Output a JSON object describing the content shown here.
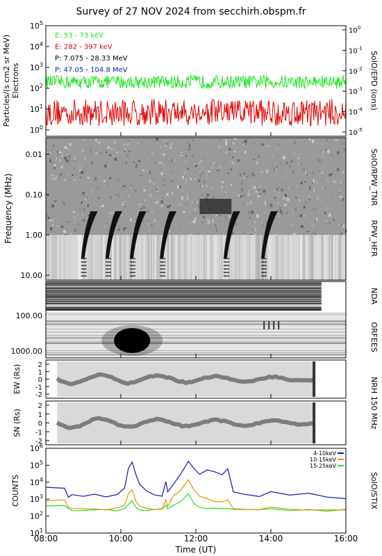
{
  "title": "Survey of 27 NOV 2024 from secchirh.obspm.fr",
  "time_axis": {
    "label": "Time (UT)",
    "ticks": [
      "08:00",
      "10:00",
      "12:00",
      "14:00",
      "16:00"
    ],
    "range_hours": [
      8,
      16
    ]
  },
  "colors": {
    "green": "#19e619",
    "red": "#e00000",
    "blue": "#1414b4",
    "orange": "#f08c00",
    "black": "#000000"
  },
  "chart_data": [
    {
      "type": "line",
      "panel": "SoIO/EPD (ions)",
      "ylabel": "Particles/(s cm2 sr MeV) Electrons",
      "ylim": [
        0.5,
        100000
      ],
      "log_scale": true,
      "y_ticks": [
        1,
        10,
        100,
        1000,
        10000,
        100000
      ],
      "right_axis_ticks": [
        1e-05,
        0.0001,
        0.001,
        0.01,
        0.1,
        1
      ],
      "right_label": "SoIO/EPD (ions)",
      "legend": [
        {
          "name": "E: 53 - 73 keV",
          "color": "#19e619"
        },
        {
          "name": "E: 282 - 397 keV",
          "color": "#e00000"
        },
        {
          "name": "P: 7.075 - 28.33 MeV",
          "color": "#000000"
        },
        {
          "name": "P: 47.05 - 104.8 MeV",
          "color": "#1414b4"
        }
      ],
      "series": [
        {
          "name": "E: 53 - 73 keV",
          "typical": 200,
          "range": [
            60,
            600
          ]
        },
        {
          "name": "E: 282 - 397 keV",
          "typical": 8,
          "range": [
            1,
            30
          ]
        }
      ]
    },
    {
      "type": "heatmap",
      "panel": "SoIO/RPW_TNR / RPW_HFR",
      "ylabel": "Frequency (MHz)",
      "y_ticks": [
        "0.01",
        "0.10",
        "1.00",
        "10.00"
      ],
      "right_labels": [
        "SoIO/RPW_TNR",
        "RPW_HFR"
      ],
      "type_iii_bursts_hours": [
        9.05,
        9.7,
        10.35,
        11.15,
        12.85,
        13.85
      ]
    },
    {
      "type": "heatmap",
      "panel": "NDA",
      "right_label": "NDA",
      "data_end_hours": 15.35
    },
    {
      "type": "heatmap",
      "panel": "ORFEES",
      "y_ticks": [
        "100.00",
        "1000.00"
      ],
      "right_label": "ORFEES",
      "burst_hours": [
        10.3
      ]
    },
    {
      "type": "heatmap",
      "panel": "NRH 150 MHz EW",
      "ylabel": "EW (Rs)",
      "y_ticks": [
        "2",
        "1",
        "0",
        "-1",
        "-2"
      ],
      "right_label": "NRH 150 MHz",
      "data_hours": [
        8.3,
        15.15
      ]
    },
    {
      "type": "heatmap",
      "panel": "NRH 150 MHz SN",
      "ylabel": "SN (Rs)",
      "y_ticks": [
        "2",
        "1",
        "0",
        "-1",
        "-2"
      ],
      "data_hours": [
        8.3,
        15.15
      ]
    },
    {
      "type": "line",
      "panel": "SoIO/STIX",
      "ylabel": "COUNTS",
      "ylim": [
        10,
        1000000
      ],
      "log_scale": true,
      "y_ticks": [
        10,
        100,
        1000,
        10000,
        100000,
        1000000
      ],
      "right_label": "SoIO/STIX",
      "x_hours": [
        8.5,
        8.6,
        8.7,
        9.0,
        9.3,
        9.6,
        9.9,
        10.1,
        10.2,
        10.3,
        10.4,
        10.5,
        10.7,
        10.9,
        11.1,
        11.2,
        11.25,
        11.4,
        11.6,
        11.8,
        11.95,
        12.1,
        12.3,
        12.5,
        12.7,
        12.85,
        13.0,
        13.3,
        13.7,
        14.0,
        14.5,
        15.0,
        15.5,
        16.0
      ],
      "series": [
        {
          "name": "4-10keV",
          "color": "#1414b4",
          "values": [
            5000,
            1500,
            2000,
            1500,
            1800,
            1500,
            2000,
            4000,
            60000,
            150000,
            30000,
            8000,
            3000,
            2000,
            1500,
            10000,
            3000,
            8000,
            30000,
            150000,
            60000,
            30000,
            50000,
            40000,
            30000,
            60000,
            3000,
            2000,
            1500,
            3000,
            1500,
            2000,
            1200,
            1200
          ]
        },
        {
          "name": "10-15keV",
          "color": "#f08c00",
          "values": [
            800,
            300,
            250,
            250,
            250,
            250,
            280,
            400,
            2000,
            4000,
            800,
            350,
            280,
            250,
            260,
            1000,
            400,
            1500,
            3000,
            15000,
            4000,
            1500,
            1000,
            700,
            600,
            800,
            250,
            250,
            250,
            300,
            250,
            260,
            240,
            250
          ]
        },
        {
          "name": "15-25keV",
          "color": "#19e619",
          "values": [
            400,
            250,
            230,
            220,
            220,
            220,
            230,
            260,
            500,
            800,
            300,
            240,
            230,
            220,
            230,
            400,
            250,
            400,
            800,
            2000,
            600,
            350,
            300,
            280,
            260,
            300,
            230,
            220,
            220,
            240,
            220,
            230,
            220,
            220
          ]
        }
      ]
    }
  ]
}
